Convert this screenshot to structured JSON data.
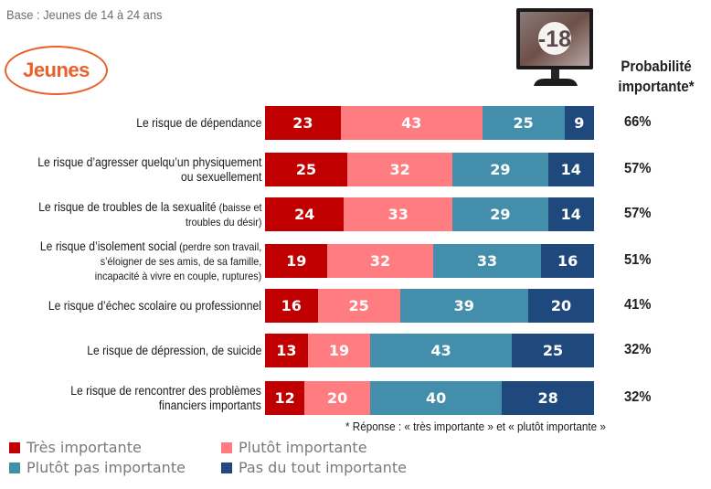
{
  "header": {
    "base_text": "Base : Jeunes de 14 à 24 ans",
    "badge_label": "Jeunes",
    "icon": "monitor-18-icon",
    "icon_text": "-18",
    "prob_heading_line1": "Probabilité",
    "prob_heading_line2": "importante*"
  },
  "colors": {
    "tres_importante": "#c00000",
    "plutot_importante": "#ff7c80",
    "plutot_pas_importante": "#438fab",
    "pas_du_tout_importante": "#1f497d",
    "accent_orange": "#e8612c"
  },
  "chart_data": {
    "type": "bar",
    "orientation": "horizontal",
    "stacked": true,
    "title": "",
    "subtitle": "Base : Jeunes de 14 à 24 ans",
    "xlabel": "",
    "ylabel": "",
    "xlim": [
      0,
      100
    ],
    "grid": false,
    "legend_position": "bottom-left",
    "categories": [
      {
        "main": "Le risque de dépendance",
        "detail": "",
        "line2": ""
      },
      {
        "main": "Le risque d’agresser quelqu’un physiquement",
        "detail": "",
        "line2": "ou sexuellement"
      },
      {
        "main": "Le risque de troubles de la sexualité",
        "detail": " (baisse et",
        "line2": "troubles du désir)"
      },
      {
        "main": "Le risque d’isolement social",
        "detail": " (perdre son travail,",
        "line2": "s’éloigner de ses amis, de sa famille,",
        "line3": "incapacité à vivre en couple, ruptures)"
      },
      {
        "main": "Le risque d’échec scolaire ou professionnel",
        "detail": "",
        "line2": ""
      },
      {
        "main": "Le risque de dépression, de suicide",
        "detail": "",
        "line2": ""
      },
      {
        "main": "Le risque de rencontrer des problèmes",
        "detail": "",
        "line2": "financiers importants"
      }
    ],
    "series": [
      {
        "name": "Très importante",
        "color": "#c00000",
        "values": [
          23,
          25,
          24,
          19,
          16,
          13,
          12
        ]
      },
      {
        "name": "Plutôt importante",
        "color": "#ff7c80",
        "values": [
          43,
          32,
          33,
          32,
          25,
          19,
          20
        ]
      },
      {
        "name": "Plutôt pas importante",
        "color": "#438fab",
        "values": [
          25,
          29,
          29,
          33,
          39,
          43,
          40
        ]
      },
      {
        "name": "Pas du tout importante",
        "color": "#1f497d",
        "values": [
          9,
          14,
          14,
          16,
          20,
          25,
          28
        ]
      }
    ],
    "probabilite_importante": [
      "66%",
      "57%",
      "57%",
      "51%",
      "41%",
      "32%",
      "32%"
    ],
    "annotation": "* Réponse : « très importante » et « plutôt importante »"
  },
  "legend": {
    "items": [
      {
        "label": "Très importante",
        "color": "#c00000"
      },
      {
        "label": "Plutôt importante",
        "color": "#ff7c80"
      },
      {
        "label": "Plutôt pas importante",
        "color": "#438fab"
      },
      {
        "label": "Pas du tout importante",
        "color": "#1f497d"
      }
    ]
  }
}
